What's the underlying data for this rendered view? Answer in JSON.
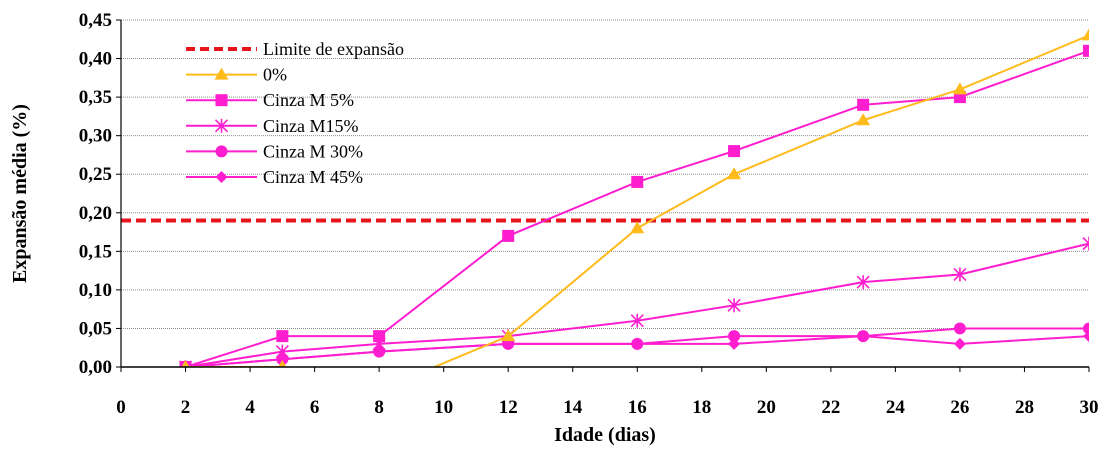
{
  "chart_data": {
    "type": "line",
    "xlabel": "Idade (dias)",
    "ylabel": "Expansão média (%)",
    "xlim": [
      0,
      30
    ],
    "ylim": [
      0,
      0.45
    ],
    "x_ticks": [
      "0",
      "2",
      "4",
      "6",
      "8",
      "10",
      "12",
      "14",
      "16",
      "18",
      "20",
      "22",
      "24",
      "26",
      "28",
      "30"
    ],
    "y_ticks": [
      "0,00",
      "0,05",
      "0,10",
      "0,15",
      "0,20",
      "0,25",
      "0,30",
      "0,35",
      "0,40",
      "0,45"
    ],
    "grid": "horizontal",
    "legend_position": "top-left",
    "limit_line": {
      "name": "Limite de expansão",
      "value": 0.19,
      "color": "#e8141c"
    },
    "series": [
      {
        "name": "0%",
        "color": "#ffbb1c",
        "marker": "triangle",
        "x": [
          2,
          5,
          8,
          12,
          16,
          19,
          23,
          26,
          30
        ],
        "y": [
          0.0,
          0.0,
          -0.03,
          0.04,
          0.18,
          0.25,
          0.32,
          0.36,
          0.43
        ]
      },
      {
        "name": "Cinza M 5%",
        "color": "#ff1ecf",
        "marker": "square",
        "x": [
          2,
          5,
          8,
          12,
          16,
          19,
          23,
          26,
          30
        ],
        "y": [
          0.0,
          0.04,
          0.04,
          0.17,
          0.24,
          0.28,
          0.34,
          0.35,
          0.41
        ]
      },
      {
        "name": "Cinza M15%",
        "color": "#ff1ecf",
        "marker": "star",
        "x": [
          2,
          5,
          8,
          12,
          16,
          19,
          23,
          26,
          30
        ],
        "y": [
          0.0,
          0.02,
          0.03,
          0.04,
          0.06,
          0.08,
          0.11,
          0.12,
          0.16
        ]
      },
      {
        "name": "Cinza M 30%",
        "color": "#ff1ecf",
        "marker": "circle",
        "x": [
          2,
          5,
          8,
          12,
          16,
          19,
          23,
          26,
          30
        ],
        "y": [
          0.0,
          0.01,
          0.02,
          0.03,
          0.03,
          0.04,
          0.04,
          0.05,
          0.05
        ]
      },
      {
        "name": "Cinza M 45%",
        "color": "#ff1ecf",
        "marker": "diamond",
        "x": [
          2,
          5,
          8,
          12,
          16,
          19,
          23,
          26,
          30
        ],
        "y": [
          0.0,
          0.01,
          0.02,
          0.03,
          0.03,
          0.03,
          0.04,
          0.03,
          0.04
        ]
      }
    ]
  }
}
